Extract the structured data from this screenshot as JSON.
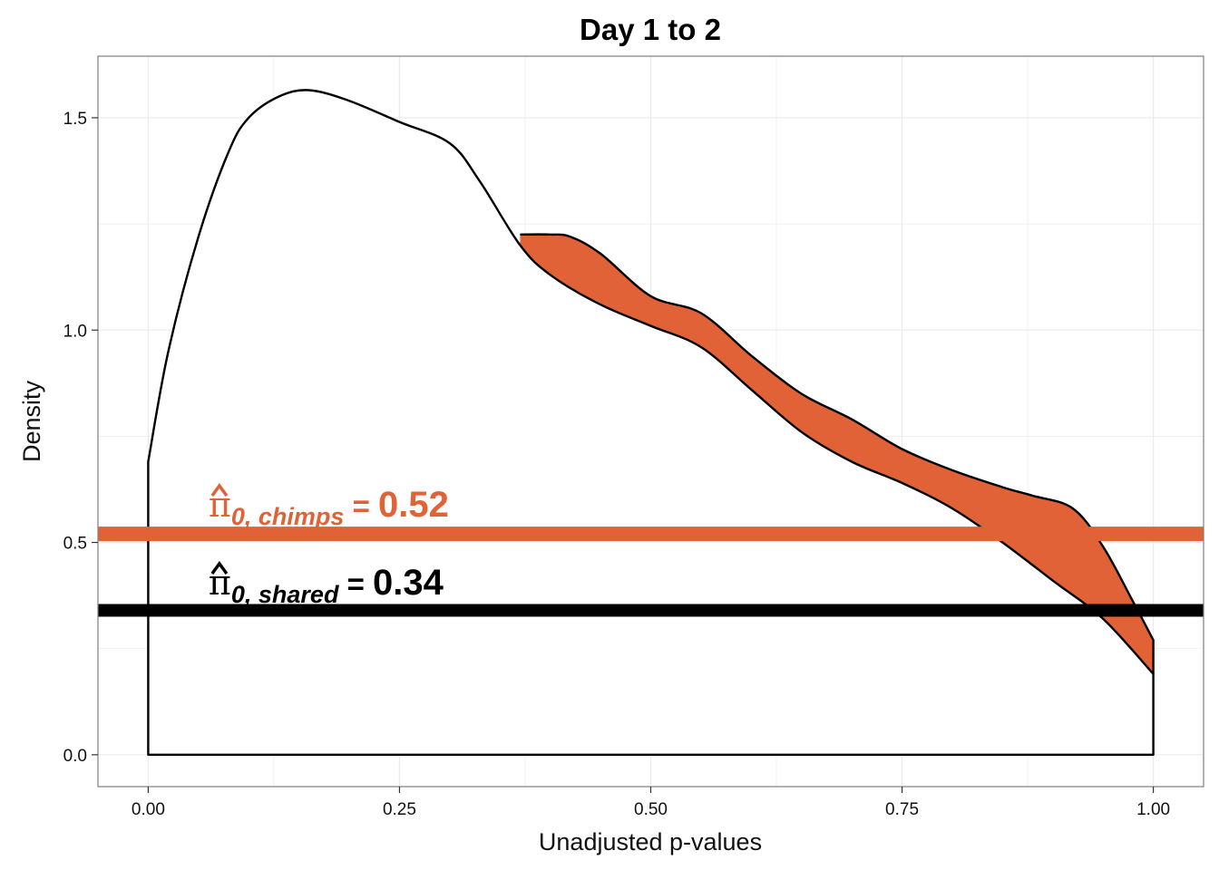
{
  "chart_data": {
    "type": "area",
    "title": "Day 1 to 2",
    "xlabel": "Unadjusted p-values",
    "ylabel": "Density",
    "xlim": [
      -0.05,
      1.05
    ],
    "ylim": [
      -0.075,
      1.645
    ],
    "x_ticks": [
      0,
      0.25,
      0.5,
      0.75,
      1
    ],
    "x_tick_labels": [
      "0.00",
      "0.25",
      "0.50",
      "0.75",
      "1.00"
    ],
    "y_ticks": [
      0,
      0.5,
      1,
      1.5
    ],
    "y_tick_labels": [
      "0.0",
      "0.5",
      "1.0",
      "1.5"
    ],
    "grid": true,
    "colors": {
      "chimps": "#E06236",
      "shared": "#000000",
      "grid": "#EBEBEB",
      "border": "#7F7F7F"
    },
    "series": [
      {
        "name": "shared",
        "x": [
          0,
          0.02,
          0.05,
          0.08,
          0.1,
          0.13,
          0.16,
          0.2,
          0.25,
          0.3,
          0.33,
          0.37,
          0.4,
          0.45,
          0.5,
          0.55,
          0.6,
          0.65,
          0.7,
          0.75,
          0.8,
          0.85,
          0.9,
          0.95,
          1
        ],
        "y": [
          0.69,
          0.95,
          1.22,
          1.42,
          1.5,
          1.55,
          1.565,
          1.54,
          1.49,
          1.44,
          1.35,
          1.2,
          1.13,
          1.06,
          1.01,
          0.96,
          0.86,
          0.76,
          0.69,
          0.64,
          0.58,
          0.5,
          0.41,
          0.32,
          0.19
        ]
      },
      {
        "name": "chimps",
        "x": [
          0.37,
          0.4,
          0.42,
          0.45,
          0.5,
          0.55,
          0.6,
          0.65,
          0.7,
          0.75,
          0.8,
          0.85,
          0.88,
          0.92,
          0.95,
          0.98,
          1
        ],
        "y": [
          1.225,
          1.225,
          1.22,
          1.18,
          1.08,
          1.04,
          0.94,
          0.85,
          0.79,
          0.72,
          0.67,
          0.63,
          0.61,
          0.58,
          0.49,
          0.36,
          0.27
        ]
      }
    ],
    "hlines": [
      {
        "name": "chimps",
        "y": 0.52,
        "label_symbol": "π",
        "label_sub": "0, chimps",
        "label_eq": " = ",
        "label_value": "0.52"
      },
      {
        "name": "shared",
        "y": 0.34,
        "label_symbol": "π",
        "label_sub": "0, shared",
        "label_eq": " = ",
        "label_value": "0.34"
      }
    ]
  }
}
